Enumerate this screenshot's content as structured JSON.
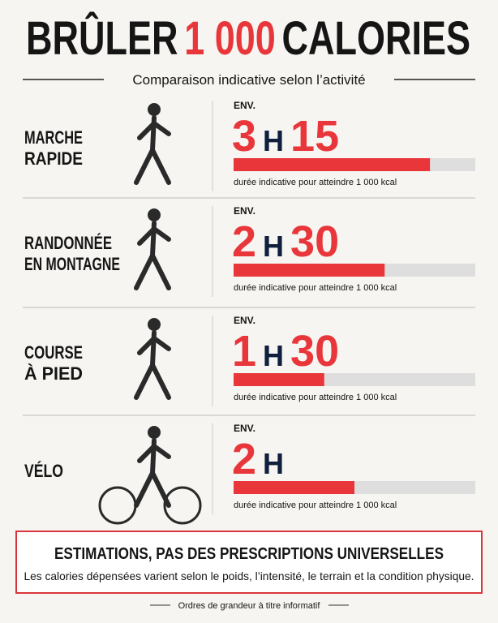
{
  "header": {
    "title_parts": [
      "BRÛLER",
      "1 000",
      "CALORIES"
    ],
    "subtitle": "Comparaison indicative selon l’activité"
  },
  "scale": {
    "xlim": [
      0,
      240
    ],
    "color": "#e8363b",
    "track_color": "#dedede",
    "hour_color": "#0f1f3d"
  },
  "activities": [
    {
      "name_lines": [
        "MARCHE",
        "RAPIDE"
      ],
      "prefix": "ENV.",
      "hours": "3",
      "h": "H",
      "minutes": "15",
      "duration_minutes": 195,
      "note": "durée indicative pour atteindre 1 000 kcal"
    },
    {
      "name_lines": [
        "RANDONNÉE",
        "EN MONTAGNE"
      ],
      "prefix": "ENV.",
      "hours": "2",
      "h": "H",
      "minutes": "30",
      "duration_minutes": 150,
      "note": "durée indicative pour atteindre 1 000 kcal"
    },
    {
      "name_lines": [
        "COURSE",
        "À PIED"
      ],
      "prefix": "ENV.",
      "hours": "1",
      "h": "H",
      "minutes": "30",
      "duration_minutes": 90,
      "note": "durée indicative pour atteindre 1 000 kcal"
    },
    {
      "name_lines": [
        "VÉLO"
      ],
      "prefix": "ENV.",
      "hours": "2",
      "h": "H",
      "minutes": null,
      "duration_minutes": 120,
      "note": "durée indicative pour atteindre 1 000 kcal"
    }
  ],
  "warning": {
    "title": "ESTIMATIONS, PAS DES PRESCRIPTIONS UNIVERSELLES",
    "text": "Les calories dépensées varient selon le poids, l’intensité, le terrain et la condition physique."
  },
  "footnote": "Ordres de grandeur à titre informatif"
}
